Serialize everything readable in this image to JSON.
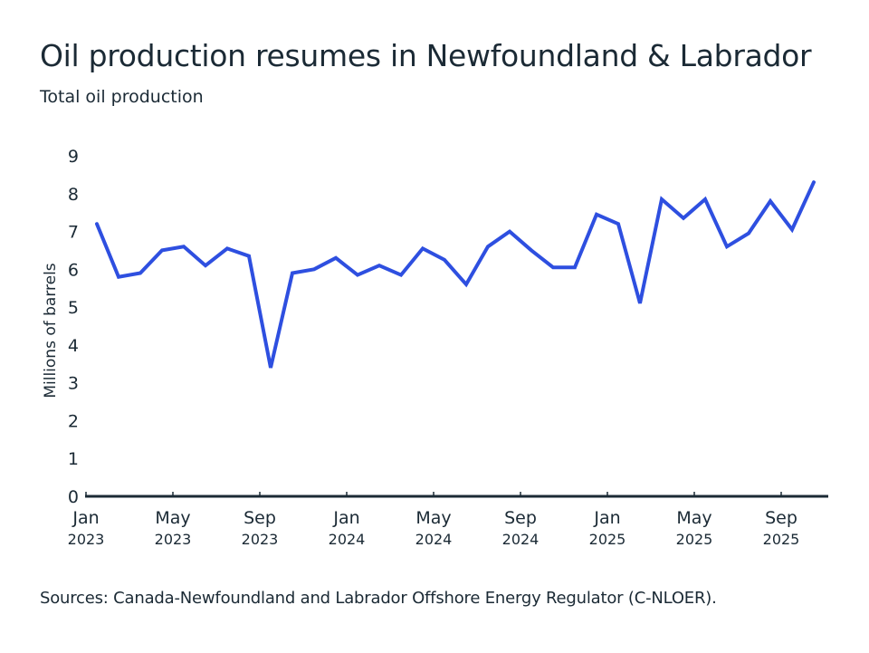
{
  "title": "Oil production resumes in Newfoundland & Labrador",
  "subtitle": "Total oil production",
  "source": "Sources: Canada-Newfoundland and Labrador Offshore Energy Regulator (C-NLOER).",
  "colors": {
    "line": "#2e4fe0",
    "axis": "#1b2a35",
    "text": "#1b2a35"
  },
  "chart_data": {
    "type": "line",
    "title": "Oil production resumes in Newfoundland & Labrador",
    "subtitle": "Total oil production",
    "xlabel": "",
    "ylabel": "Millions of barrels",
    "ylim": [
      0,
      9
    ],
    "yticks": [
      "0",
      "1",
      "2",
      "3",
      "4",
      "5",
      "6",
      "7",
      "8",
      "9"
    ],
    "xticks": [
      {
        "month": "Jan",
        "year": "2023",
        "index": 0
      },
      {
        "month": "May",
        "year": "2023",
        "index": 4
      },
      {
        "month": "Sep",
        "year": "2023",
        "index": 8
      },
      {
        "month": "Jan",
        "year": "2024",
        "index": 12
      },
      {
        "month": "May",
        "year": "2024",
        "index": 16
      },
      {
        "month": "Sep",
        "year": "2024",
        "index": 20
      },
      {
        "month": "Jan",
        "year": "2025",
        "index": 24
      },
      {
        "month": "May",
        "year": "2025",
        "index": 28
      },
      {
        "month": "Sep",
        "year": "2025",
        "index": 32
      }
    ],
    "grid": false,
    "legend": "none",
    "x": [
      "2023-01",
      "2023-02",
      "2023-03",
      "2023-04",
      "2023-05",
      "2023-06",
      "2023-07",
      "2023-08",
      "2023-09",
      "2023-10",
      "2023-11",
      "2023-12",
      "2024-01",
      "2024-02",
      "2024-03",
      "2024-04",
      "2024-05",
      "2024-06",
      "2024-07",
      "2024-08",
      "2024-09",
      "2024-10",
      "2024-11",
      "2024-12",
      "2025-01",
      "2025-02",
      "2025-03",
      "2025-04",
      "2025-05",
      "2025-06",
      "2025-07",
      "2025-08",
      "2025-09",
      "2025-10"
    ],
    "series": [
      {
        "name": "Total oil production",
        "values": [
          7.2,
          5.8,
          5.9,
          6.5,
          6.6,
          6.1,
          6.55,
          6.35,
          3.4,
          5.9,
          6.0,
          6.3,
          5.85,
          6.1,
          5.85,
          6.55,
          6.25,
          5.6,
          6.6,
          7.0,
          6.5,
          6.05,
          6.05,
          7.45,
          7.2,
          5.1,
          7.85,
          7.35,
          7.85,
          6.6,
          6.95,
          7.8,
          7.05,
          8.3
        ]
      }
    ]
  }
}
